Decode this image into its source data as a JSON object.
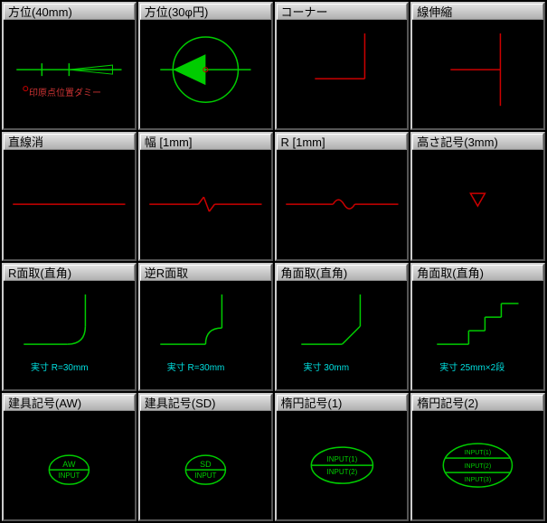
{
  "cells": [
    {
      "title": "方位(40mm)",
      "subtext": "印原点位置ダミー",
      "subtext_color": "#cc3333",
      "type": "compass40"
    },
    {
      "title": "方位(30φ円)",
      "subtext": "",
      "type": "compass30"
    },
    {
      "title": "コーナー",
      "subtext": "",
      "type": "corner"
    },
    {
      "title": "線伸縮",
      "subtext": "",
      "type": "line_extend"
    },
    {
      "title": "直線消",
      "subtext": "",
      "type": "line_erase"
    },
    {
      "title": "幅 [1mm]",
      "subtext": "",
      "type": "width1"
    },
    {
      "title": "R [1mm]",
      "subtext": "",
      "type": "r1"
    },
    {
      "title": "高さ記号(3mm)",
      "subtext": "",
      "type": "height_mark"
    },
    {
      "title": "R面取(直角)",
      "subtext": "実寸 R=30mm",
      "subtext_color": "#00e0e0",
      "type": "r_chamfer"
    },
    {
      "title": "逆R面取",
      "subtext": "実寸 R=30mm",
      "subtext_color": "#00e0e0",
      "type": "rev_r_chamfer"
    },
    {
      "title": "角面取(直角)",
      "subtext": "実寸 30mm",
      "subtext_color": "#00e0e0",
      "type": "angle_chamfer"
    },
    {
      "title": "角面取(直角)",
      "subtext": "実寸 25mm×2段",
      "subtext_color": "#00e0e0",
      "type": "step_chamfer"
    },
    {
      "title": "建具記号(AW)",
      "subtext": "",
      "type": "fixture_aw",
      "text1": "AW",
      "text2": "INPUT"
    },
    {
      "title": "建具記号(SD)",
      "subtext": "",
      "type": "fixture_sd",
      "text1": "SD",
      "text2": "INPUT"
    },
    {
      "title": "楕円記号(1)",
      "subtext": "",
      "type": "ellipse1",
      "text1": "INPUT(1)",
      "text2": "INPUT(2)"
    },
    {
      "title": "楕円記号(2)",
      "subtext": "",
      "type": "ellipse2",
      "text1": "INPUT(1)",
      "text2": "INPUT(2)",
      "text3": "INPUT(3)"
    }
  ],
  "colors": {
    "green": "#00cc00",
    "red": "#cc0000",
    "cyan": "#00e0e0",
    "redtext": "#cc3333"
  }
}
